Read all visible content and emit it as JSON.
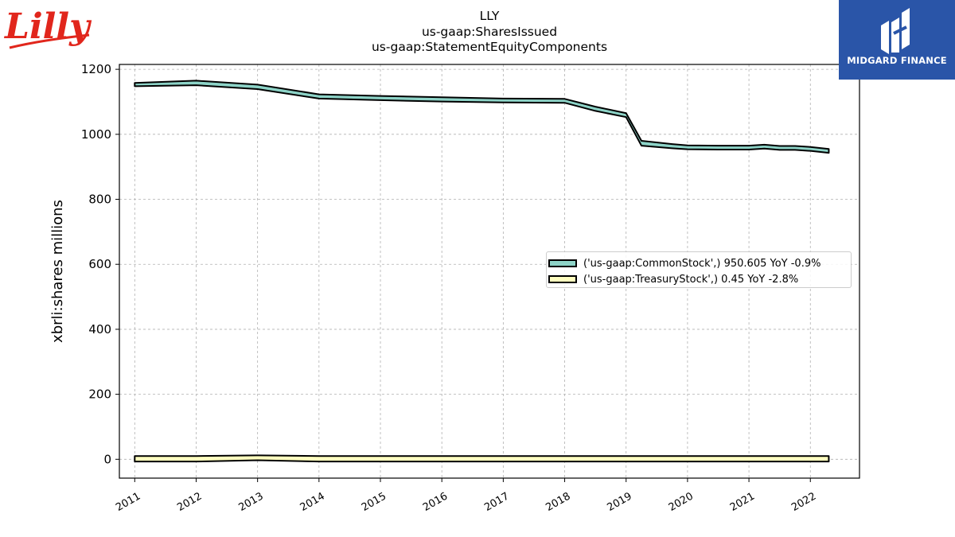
{
  "brand": {
    "logo_text": "Lilly",
    "logo_color": "#e1261c"
  },
  "partner": {
    "name": "MIDGARD FINANCE",
    "bg_color": "#2a55a8"
  },
  "title": {
    "line1": "LLY",
    "line2": "us-gaap:SharesIssued",
    "line3": "us-gaap:StatementEquityComponents"
  },
  "legend": {
    "placement": "center-right",
    "items": [
      {
        "label": "('us-gaap:CommonStock',) 950.605 YoY -0.9%",
        "color": "#8dd3c7"
      },
      {
        "label": "('us-gaap:TreasuryStock',) 0.45 YoY -2.8%",
        "color": "#ffffbf"
      }
    ]
  },
  "chart_data": {
    "type": "area",
    "ylabel": "xbrli:shares millions",
    "xlabel": "",
    "xlim": [
      2010.75,
      2022.8
    ],
    "ylim": [
      -58,
      1215
    ],
    "yticks": [
      0,
      200,
      400,
      600,
      800,
      1000,
      1200
    ],
    "xticks": [
      "2011",
      "2012",
      "2013",
      "2014",
      "2015",
      "2016",
      "2017",
      "2018",
      "2019",
      "2020",
      "2021",
      "2022"
    ],
    "grid": true,
    "series": [
      {
        "name": "('us-gaap:CommonStock',)",
        "color": "#8dd3c7",
        "x": [
          2011,
          2012,
          2013,
          2014,
          2015,
          2016,
          2017,
          2018,
          2018.5,
          2019,
          2019.25,
          2019.75,
          2020,
          2020.5,
          2021,
          2021.25,
          2021.5,
          2021.75,
          2022,
          2022.3
        ],
        "upper": [
          1158,
          1165,
          1153,
          1123,
          1118,
          1114,
          1110,
          1109,
          1085,
          1065,
          980,
          970,
          966,
          965,
          965,
          968,
          964,
          964,
          961,
          955
        ],
        "lower": [
          1148,
          1151,
          1139,
          1110,
          1105,
          1101,
          1098,
          1097,
          1072,
          1053,
          965,
          957,
          954,
          953,
          953,
          956,
          952,
          952,
          949,
          943
        ]
      },
      {
        "name": "('us-gaap:TreasuryStock',)",
        "color": "#ffffbf",
        "x": [
          2011,
          2012,
          2013,
          2014,
          2015,
          2016,
          2017,
          2018,
          2019,
          2020,
          2021,
          2022,
          2022.3
        ],
        "upper": [
          10,
          10,
          12,
          10,
          10,
          10,
          10,
          10,
          10,
          10,
          10,
          10,
          10
        ],
        "lower": [
          -7,
          -7,
          -3,
          -7,
          -7,
          -7,
          -7,
          -7,
          -7,
          -7,
          -7,
          -7,
          -7
        ]
      }
    ]
  }
}
